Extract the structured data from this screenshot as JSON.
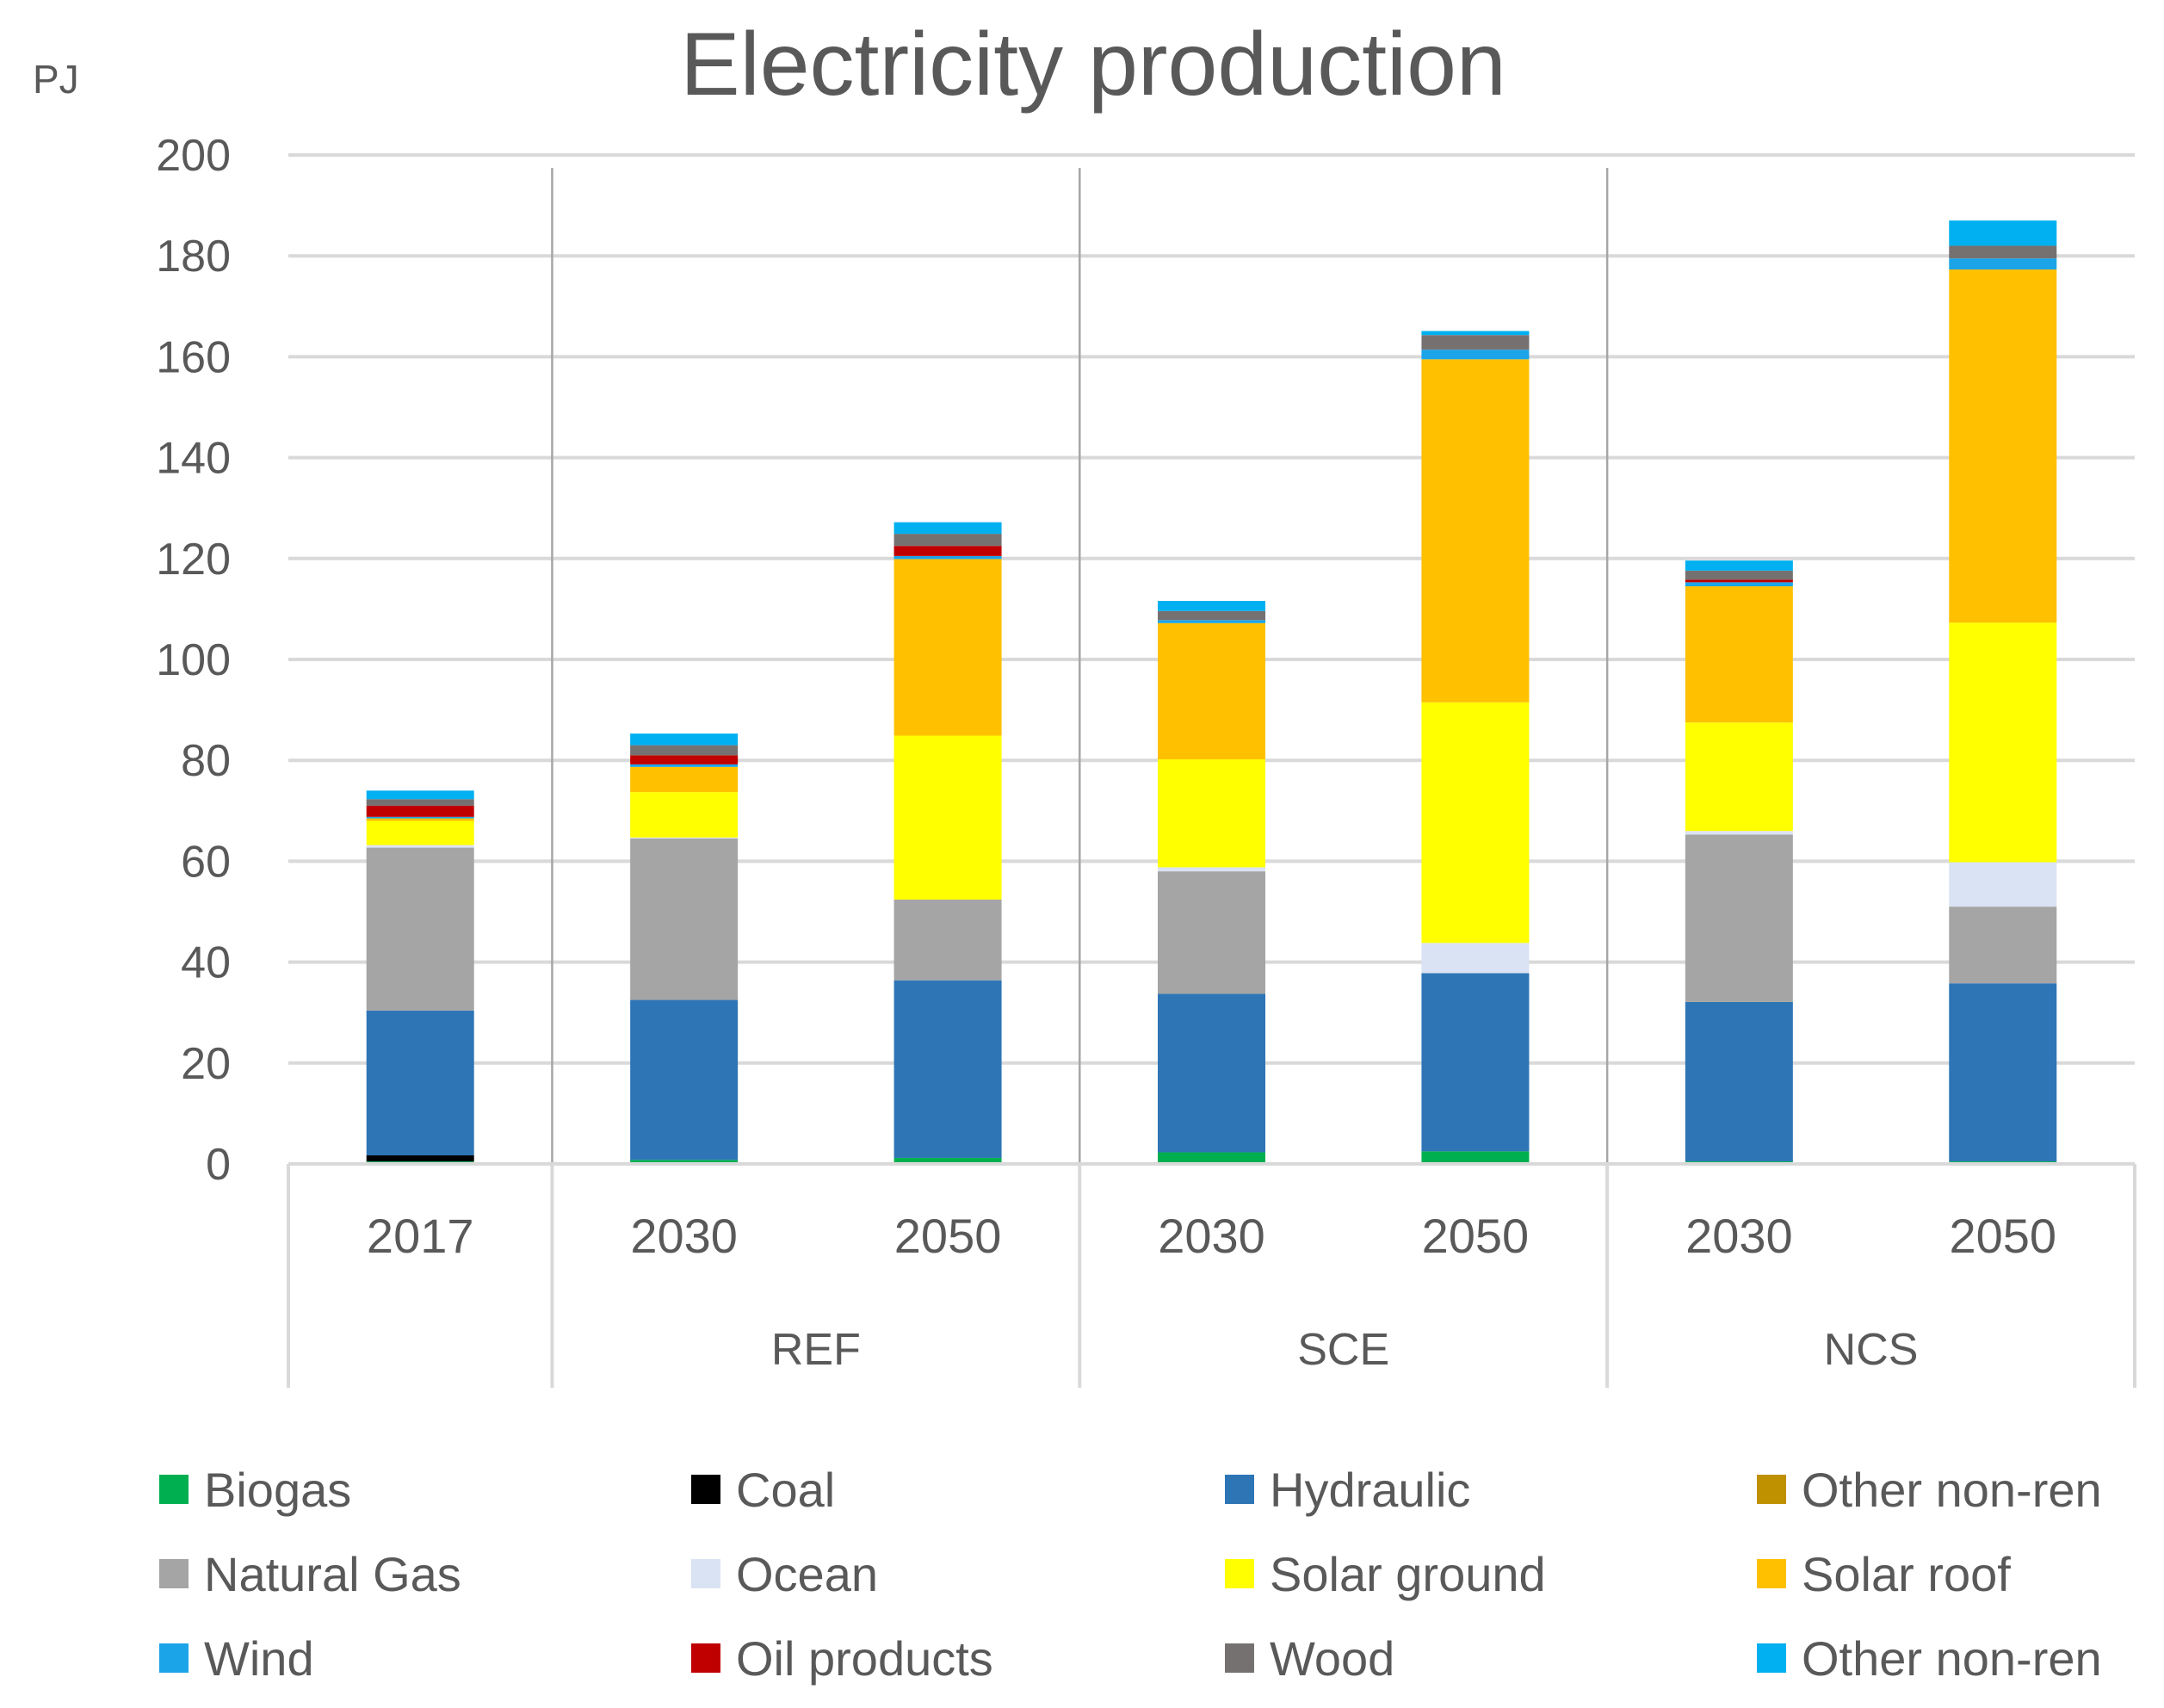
{
  "chart_data": {
    "type": "bar",
    "stacked": true,
    "title": "Electricity production",
    "ylabel": "PJ",
    "xlabel": "",
    "ylim": [
      0,
      200
    ],
    "yticks": [
      0,
      20,
      40,
      60,
      80,
      100,
      120,
      140,
      160,
      180,
      200
    ],
    "grid": true,
    "legend_position": "bottom",
    "categories": [
      "2017",
      "2030",
      "2050",
      "2030",
      "2050",
      "2030",
      "2050"
    ],
    "groups": [
      {
        "label": "",
        "categories": [
          0
        ]
      },
      {
        "label": "REF",
        "categories": [
          1,
          2
        ]
      },
      {
        "label": "SCE",
        "categories": [
          3,
          4
        ]
      },
      {
        "label": "NCS",
        "categories": [
          5,
          6
        ]
      }
    ],
    "series": [
      {
        "name": "Biogas",
        "color": "#00B050",
        "values": [
          0.5,
          0.8,
          1.2,
          2.3,
          2.5,
          0.5,
          0.5
        ]
      },
      {
        "name": "Coal",
        "color": "#000000",
        "values": [
          1.2,
          0,
          0,
          0,
          0,
          0,
          0
        ]
      },
      {
        "name": "Hydraulic",
        "color": "#2E75B6",
        "values": [
          28.7,
          31.7,
          35.2,
          31.4,
          35.3,
          31.6,
          35.3
        ]
      },
      {
        "name": "Other non-ren",
        "color": "#BF9000",
        "values": [
          0,
          0,
          0,
          0,
          0,
          0,
          0
        ]
      },
      {
        "name": "Natural Gas",
        "color": "#A5A5A5",
        "values": [
          32.3,
          32.0,
          16.0,
          24.3,
          0,
          33.2,
          15.2
        ]
      },
      {
        "name": "Ocean",
        "color": "#DAE3F3",
        "values": [
          0.5,
          0.2,
          0,
          0.8,
          6.0,
          0.7,
          8.8
        ]
      },
      {
        "name": "Solar ground",
        "color": "#FFFF00",
        "values": [
          4.8,
          9.0,
          32.5,
          21.4,
          47.7,
          21.5,
          47.5
        ]
      },
      {
        "name": "Solar roof",
        "color": "#FFC000",
        "values": [
          0.5,
          5.0,
          35.0,
          27.0,
          68.0,
          27.0,
          70.0
        ]
      },
      {
        "name": "Wind",
        "color": "#1CA4E8",
        "values": [
          0.3,
          0.5,
          0.6,
          0.6,
          1.9,
          0.8,
          2.2
        ]
      },
      {
        "name": "Oil products",
        "color": "#C00000",
        "values": [
          2.2,
          1.8,
          2.0,
          0,
          0,
          0.5,
          0
        ]
      },
      {
        "name": "Wood",
        "color": "#767171",
        "values": [
          1.3,
          2.0,
          2.4,
          1.8,
          2.9,
          1.8,
          2.5
        ]
      },
      {
        "name": "Other non-ren",
        "color": "#00B0F0",
        "values": [
          1.7,
          2.3,
          2.3,
          2.0,
          0.8,
          2.0,
          5.0
        ]
      }
    ]
  }
}
